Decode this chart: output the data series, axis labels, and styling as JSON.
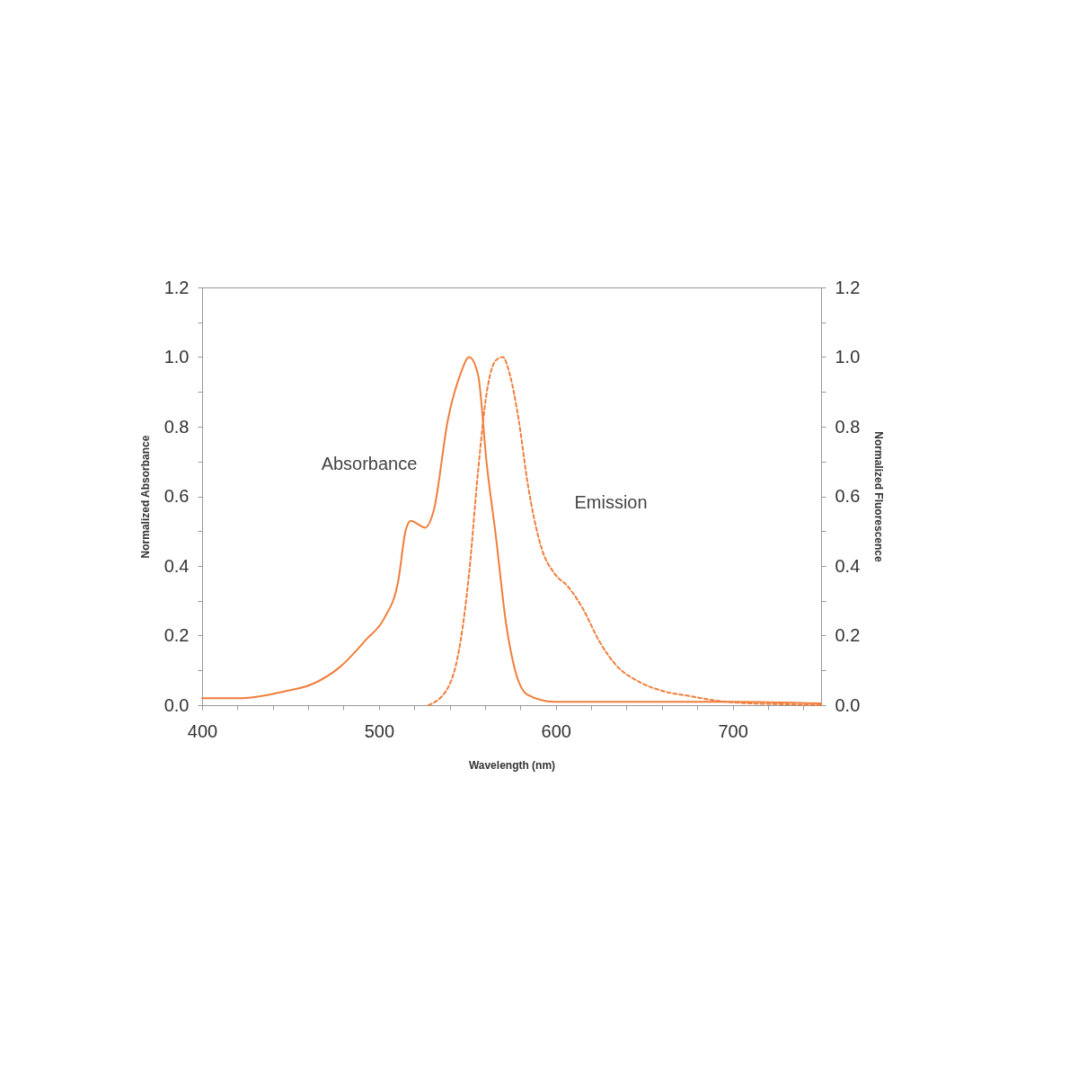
{
  "chart_data": {
    "type": "line",
    "xlabel": "Wavelength (nm)",
    "ylabel": "Normalized Absorbance",
    "y2label": "Normalized Fluorescence",
    "xlim": [
      400,
      750
    ],
    "xticks": [
      400,
      {
        "value": 420,
        "label": null
      },
      {
        "value": 440,
        "label": null
      },
      {
        "value": 460,
        "label": null
      },
      {
        "value": 480,
        "label": null
      },
      500,
      {
        "value": 520,
        "label": null
      },
      {
        "value": 540,
        "label": null
      },
      {
        "value": 560,
        "label": null
      },
      {
        "value": 580,
        "label": null
      },
      600,
      {
        "value": 620,
        "label": null
      },
      {
        "value": 640,
        "label": null
      },
      {
        "value": 660,
        "label": null
      },
      {
        "value": 680,
        "label": null
      },
      700,
      {
        "value": 720,
        "label": null
      },
      {
        "value": 740,
        "label": null
      }
    ],
    "ylim": [
      0,
      1.2
    ],
    "yticks": [
      {
        "value": 0,
        "label": "0.0"
      },
      {
        "value": 0.1,
        "label": null
      },
      {
        "value": 0.2,
        "label": "0.2"
      },
      {
        "value": 0.3,
        "label": null
      },
      {
        "value": 0.4,
        "label": "0.4"
      },
      {
        "value": 0.5,
        "label": null
      },
      {
        "value": 0.6,
        "label": "0.6"
      },
      {
        "value": 0.7,
        "label": null
      },
      {
        "value": 0.8,
        "label": "0.8"
      },
      {
        "value": 0.9,
        "label": null
      },
      {
        "value": 1,
        "label": "1.0"
      },
      {
        "value": 1.1,
        "label": null
      },
      {
        "value": 1.2,
        "label": "1.2"
      }
    ],
    "y2lim": [
      0,
      1.2
    ],
    "y2ticks": [
      {
        "value": 0,
        "label": "0.0"
      },
      {
        "value": 0.1,
        "label": null
      },
      {
        "value": 0.2,
        "label": "0.2"
      },
      {
        "value": 0.3,
        "label": null
      },
      {
        "value": 0.4,
        "label": "0.4"
      },
      {
        "value": 0.5,
        "label": null
      },
      {
        "value": 0.6,
        "label": "0.6"
      },
      {
        "value": 0.7,
        "label": null
      },
      {
        "value": 0.8,
        "label": "0.8"
      },
      {
        "value": 0.9,
        "label": null
      },
      {
        "value": 1,
        "label": "1.0"
      },
      {
        "value": 1.1,
        "label": null
      },
      {
        "value": 1.2,
        "label": "1.2"
      }
    ],
    "grid": false,
    "series": [
      {
        "name": "Absorbance",
        "color": "#f07e3c",
        "line_style": "solid",
        "x": [
          400,
          422,
          447,
          462,
          478,
          493,
          503,
          511,
          515,
          518,
          522,
          526,
          531,
          539,
          546,
          551,
          556,
          561,
          566,
          572,
          577,
          584,
          599,
          625,
          660,
          700,
          750
        ],
        "values": [
          0.02,
          0.02,
          0.04,
          0.06,
          0.11,
          0.19,
          0.25,
          0.36,
          0.5,
          0.53,
          0.52,
          0.51,
          0.56,
          0.82,
          0.95,
          1.0,
          0.95,
          0.69,
          0.49,
          0.23,
          0.1,
          0.03,
          0.01,
          0.01,
          0.01,
          0.01,
          0.005
        ]
      },
      {
        "name": "Emission",
        "color": "#f07e3c",
        "line_style": "dashed",
        "axis": "y2",
        "x": [
          528,
          539,
          546,
          551,
          556,
          561,
          566,
          570,
          574,
          579,
          584,
          592,
          599,
          607,
          615,
          625,
          635,
          646,
          661,
          676,
          691,
          711,
          726,
          750
        ],
        "values": [
          0,
          0.05,
          0.18,
          0.38,
          0.67,
          0.9,
          0.99,
          1.0,
          0.95,
          0.82,
          0.64,
          0.45,
          0.38,
          0.34,
          0.28,
          0.18,
          0.11,
          0.07,
          0.04,
          0.026,
          0.013,
          0.005,
          0.003,
          0
        ]
      }
    ]
  }
}
